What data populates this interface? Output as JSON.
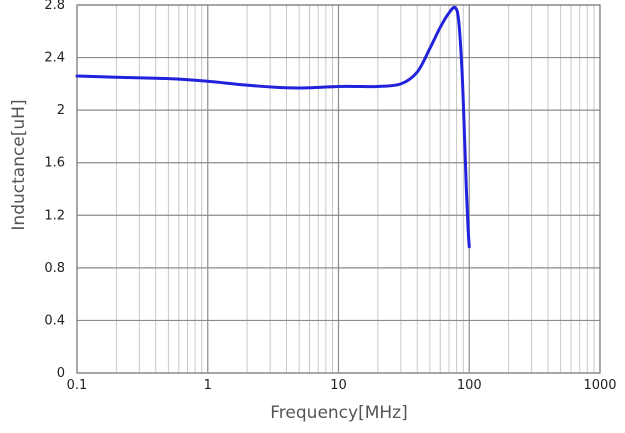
{
  "chart_data": {
    "type": "line",
    "xlabel": "Frequency[MHz]",
    "ylabel": "Inductance[uH]",
    "x_scale": "log",
    "xlim": [
      0.1,
      1000
    ],
    "ylim": [
      0,
      2.8
    ],
    "x_ticks": [
      0.1,
      1,
      10,
      100,
      1000
    ],
    "x_tick_labels": [
      "0.1",
      "1",
      "10",
      "100",
      "1000"
    ],
    "y_ticks": [
      0,
      0.4,
      0.8,
      1.2,
      1.6,
      2,
      2.4,
      2.8
    ],
    "y_tick_labels": [
      "0",
      "0.4",
      "0.8",
      "1.2",
      "1.6",
      "2",
      "2.4",
      "2.8"
    ],
    "grid": true,
    "line_color": "#2222dd",
    "series": [
      {
        "x": [
          0.1,
          0.2,
          0.5,
          1,
          2,
          4,
          6,
          10,
          15,
          20,
          30,
          40,
          50,
          60,
          70,
          78,
          83,
          88,
          92,
          95,
          98,
          100
        ],
        "y": [
          2.26,
          2.25,
          2.24,
          2.22,
          2.19,
          2.17,
          2.17,
          2.18,
          2.18,
          2.18,
          2.2,
          2.29,
          2.47,
          2.63,
          2.74,
          2.78,
          2.68,
          2.3,
          1.8,
          1.4,
          1.1,
          0.96
        ]
      }
    ]
  }
}
